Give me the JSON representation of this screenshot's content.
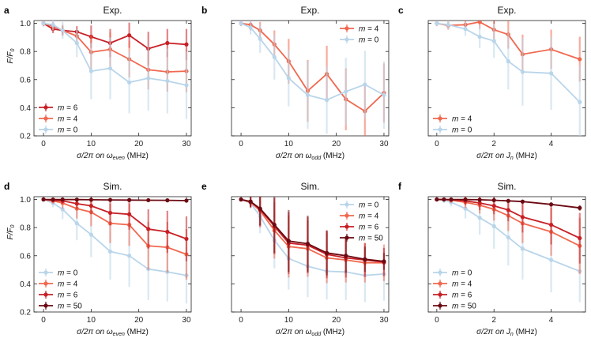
{
  "figure": {
    "ylabel": "F/F0",
    "ylabel_main": "F/F",
    "ylabel_sub": "0",
    "legend_prefix": "m",
    "colors": {
      "m0": "#b9d5ea",
      "m4": "#f0684f",
      "m6": "#c72026",
      "m50": "#6b0a12"
    }
  },
  "chart_data": [
    {
      "panel": "a",
      "title": "Exp.",
      "type": "line",
      "xlabel_pre": "σ/2π on ω",
      "xlabel_sub": "even",
      "xlabel_post": " (MHz)",
      "xlim": [
        -2,
        31
      ],
      "ylim": [
        0.2,
        1.02
      ],
      "xticks": [
        0,
        10,
        20,
        30
      ],
      "yticks": [
        0.2,
        0.4,
        0.6,
        0.8,
        1.0
      ],
      "ytick_labels": [
        "0.2",
        "0.4",
        "0.6",
        "0.8",
        "1.0"
      ],
      "legend": "bottom-left",
      "series": [
        {
          "name": "m = 6",
          "m": "6",
          "color": "#c72026",
          "x": [
            0,
            2,
            4,
            7,
            10,
            14,
            18,
            22,
            26,
            30
          ],
          "y": [
            1.0,
            0.96,
            0.95,
            0.94,
            0.905,
            0.86,
            0.915,
            0.82,
            0.86,
            0.85
          ],
          "err": [
            0.02,
            0.03,
            0.03,
            0.04,
            0.08,
            0.1,
            0.09,
            0.12,
            0.1,
            0.11
          ]
        },
        {
          "name": "m = 4",
          "m": "4",
          "color": "#f0684f",
          "x": [
            0,
            2,
            4,
            7,
            10,
            14,
            18,
            22,
            26,
            30
          ],
          "y": [
            1.0,
            0.98,
            0.95,
            0.91,
            0.795,
            0.815,
            0.745,
            0.67,
            0.655,
            0.66
          ],
          "err": [
            0.02,
            0.03,
            0.04,
            0.05,
            0.12,
            0.12,
            0.13,
            0.14,
            0.14,
            0.15
          ]
        },
        {
          "name": "m = 0",
          "m": "0",
          "color": "#b9d5ea",
          "x": [
            0,
            2,
            4,
            7,
            10,
            14,
            18,
            22,
            26,
            30
          ],
          "y": [
            1.0,
            0.99,
            0.95,
            0.86,
            0.66,
            0.68,
            0.58,
            0.61,
            0.59,
            0.56
          ],
          "err": [
            0.02,
            0.04,
            0.06,
            0.1,
            0.2,
            0.22,
            0.22,
            0.23,
            0.23,
            0.24
          ]
        }
      ]
    },
    {
      "panel": "b",
      "title": "Exp.",
      "type": "line",
      "xlabel_pre": "σ/2π on ω",
      "xlabel_sub": "odd",
      "xlabel_post": " (MHz)",
      "xlim": [
        -2,
        31
      ],
      "ylim": [
        0.2,
        1.02
      ],
      "xticks": [
        0,
        10,
        20,
        30
      ],
      "yticks": [
        0.2,
        0.4,
        0.6,
        0.8,
        1.0
      ],
      "ytick_labels": [
        "",
        "",
        "",
        "",
        ""
      ],
      "legend": "top-right",
      "series": [
        {
          "name": "m = 4",
          "m": "4",
          "color": "#f0684f",
          "x": [
            0,
            2,
            4,
            7,
            10,
            14,
            18,
            22,
            26,
            30
          ],
          "y": [
            1.0,
            0.99,
            0.95,
            0.85,
            0.73,
            0.52,
            0.64,
            0.46,
            0.375,
            0.505
          ],
          "err": [
            0.02,
            0.04,
            0.06,
            0.1,
            0.16,
            0.22,
            0.2,
            0.22,
            0.2,
            0.21
          ]
        },
        {
          "name": "m = 0",
          "m": "0",
          "color": "#b9d5ea",
          "x": [
            0,
            2,
            4,
            7,
            10,
            14,
            18,
            22,
            26,
            30
          ],
          "y": [
            1.0,
            0.97,
            0.89,
            0.76,
            0.61,
            0.49,
            0.455,
            0.515,
            0.565,
            0.49
          ],
          "err": [
            0.02,
            0.05,
            0.1,
            0.16,
            0.2,
            0.24,
            0.24,
            0.24,
            0.24,
            0.24
          ]
        }
      ]
    },
    {
      "panel": "c",
      "title": "Exp.",
      "type": "line",
      "xlabel_pre": "σ/2π on J",
      "xlabel_sub": "n",
      "xlabel_post": " (MHz)",
      "xlim": [
        -0.3,
        5.2
      ],
      "ylim": [
        0.2,
        1.02
      ],
      "xticks": [
        0,
        2,
        4
      ],
      "yticks": [
        0.2,
        0.4,
        0.6,
        0.8,
        1.0
      ],
      "ytick_labels": [
        "",
        "",
        "",
        "",
        ""
      ],
      "legend": "bottom-left",
      "series": [
        {
          "name": "m = 4",
          "m": "4",
          "color": "#f0684f",
          "x": [
            0,
            0.4,
            1.0,
            1.5,
            2.0,
            2.5,
            3.0,
            4.0,
            5.0
          ],
          "y": [
            1.0,
            0.985,
            0.99,
            1.01,
            0.955,
            0.92,
            0.78,
            0.815,
            0.745
          ],
          "err": [
            0.02,
            0.03,
            0.04,
            0.05,
            0.08,
            0.1,
            0.14,
            0.14,
            0.16
          ]
        },
        {
          "name": "m = 0",
          "m": "0",
          "color": "#b9d5ea",
          "x": [
            0,
            0.4,
            1.0,
            1.5,
            2.0,
            2.5,
            3.0,
            4.0,
            5.0
          ],
          "y": [
            1.0,
            0.99,
            0.96,
            0.905,
            0.875,
            0.73,
            0.655,
            0.645,
            0.44
          ],
          "err": [
            0.02,
            0.03,
            0.05,
            0.08,
            0.12,
            0.2,
            0.24,
            0.26,
            0.26
          ]
        }
      ]
    },
    {
      "panel": "d",
      "title": "Sim.",
      "type": "line",
      "xlabel_pre": "σ/2π on ω",
      "xlabel_sub": "even",
      "xlabel_post": " (MHz)",
      "xlim": [
        -2,
        31
      ],
      "ylim": [
        0.2,
        1.02
      ],
      "xticks": [
        0,
        10,
        20,
        30
      ],
      "yticks": [
        0.2,
        0.4,
        0.6,
        0.8,
        1.0
      ],
      "ytick_labels": [
        "0.2",
        "0.4",
        "0.6",
        "0.8",
        "1.0"
      ],
      "legend": "bottom-left",
      "series": [
        {
          "name": "m = 0",
          "m": "0",
          "color": "#b9d5ea",
          "x": [
            0,
            2,
            4,
            7,
            10,
            14,
            18,
            22,
            26,
            30
          ],
          "y": [
            1.0,
            0.975,
            0.93,
            0.83,
            0.75,
            0.63,
            0.6,
            0.505,
            0.485,
            0.46
          ],
          "err": [
            0.01,
            0.03,
            0.07,
            0.12,
            0.16,
            0.2,
            0.22,
            0.22,
            0.21,
            0.2
          ]
        },
        {
          "name": "m = 4",
          "m": "4",
          "color": "#f0684f",
          "x": [
            0,
            2,
            4,
            7,
            10,
            14,
            18,
            22,
            26,
            30
          ],
          "y": [
            1.0,
            0.99,
            0.975,
            0.935,
            0.91,
            0.83,
            0.82,
            0.67,
            0.66,
            0.61
          ],
          "err": [
            0.01,
            0.02,
            0.04,
            0.07,
            0.1,
            0.14,
            0.15,
            0.17,
            0.18,
            0.18
          ]
        },
        {
          "name": "m = 6",
          "m": "6",
          "color": "#c72026",
          "x": [
            0,
            2,
            4,
            7,
            10,
            14,
            18,
            22,
            26,
            30
          ],
          "y": [
            1.0,
            0.995,
            0.99,
            0.97,
            0.955,
            0.905,
            0.895,
            0.79,
            0.77,
            0.72
          ],
          "err": [
            0.01,
            0.01,
            0.02,
            0.04,
            0.06,
            0.09,
            0.11,
            0.14,
            0.15,
            0.16
          ]
        },
        {
          "name": "m = 50",
          "m": "50",
          "color": "#6b0a12",
          "x": [
            0,
            2,
            4,
            7,
            10,
            14,
            18,
            22,
            26,
            30
          ],
          "y": [
            1.0,
            1.0,
            1.0,
            0.999,
            0.998,
            0.997,
            0.996,
            0.995,
            0.994,
            0.992
          ],
          "err": [
            0.002,
            0.002,
            0.002,
            0.003,
            0.003,
            0.004,
            0.004,
            0.005,
            0.005,
            0.006
          ]
        }
      ]
    },
    {
      "panel": "e",
      "title": "Sim.",
      "type": "line",
      "xlabel_pre": "σ/2π on ω",
      "xlabel_sub": "odd",
      "xlabel_post": " (MHz)",
      "xlim": [
        -2,
        31
      ],
      "ylim": [
        0.2,
        1.02
      ],
      "xticks": [
        0,
        10,
        20,
        30
      ],
      "yticks": [
        0.2,
        0.4,
        0.6,
        0.8,
        1.0
      ],
      "ytick_labels": [
        "",
        "",
        "",
        "",
        ""
      ],
      "legend": "top-right",
      "series": [
        {
          "name": "m = 0",
          "m": "0",
          "color": "#b9d5ea",
          "x": [
            0,
            2,
            4,
            7,
            10,
            14,
            18,
            22,
            26,
            30
          ],
          "y": [
            1.0,
            0.975,
            0.88,
            0.71,
            0.58,
            0.525,
            0.49,
            0.485,
            0.46,
            0.47
          ],
          "err": [
            0.01,
            0.04,
            0.12,
            0.2,
            0.22,
            0.22,
            0.2,
            0.2,
            0.19,
            0.19
          ]
        },
        {
          "name": "m = 4",
          "m": "4",
          "color": "#f0684f",
          "x": [
            0,
            2,
            4,
            7,
            10,
            14,
            18,
            22,
            26,
            30
          ],
          "y": [
            1.0,
            0.98,
            0.92,
            0.78,
            0.665,
            0.65,
            0.585,
            0.57,
            0.55,
            0.55
          ],
          "err": [
            0.01,
            0.04,
            0.12,
            0.2,
            0.22,
            0.2,
            0.18,
            0.16,
            0.14,
            0.13
          ]
        },
        {
          "name": "m = 6",
          "m": "6",
          "color": "#c72026",
          "x": [
            0,
            2,
            4,
            7,
            10,
            14,
            18,
            22,
            26,
            30
          ],
          "y": [
            1.0,
            0.985,
            0.93,
            0.81,
            0.69,
            0.675,
            0.61,
            0.585,
            0.57,
            0.555
          ],
          "err": [
            0.01,
            0.04,
            0.12,
            0.2,
            0.22,
            0.2,
            0.17,
            0.14,
            0.12,
            0.1
          ]
        },
        {
          "name": "m = 50",
          "m": "50",
          "color": "#6b0a12",
          "x": [
            0,
            2,
            4,
            7,
            10,
            14,
            18,
            22,
            26,
            30
          ],
          "y": [
            1.0,
            0.985,
            0.935,
            0.82,
            0.705,
            0.685,
            0.62,
            0.6,
            0.575,
            0.56
          ],
          "err": [
            0.01,
            0.04,
            0.12,
            0.2,
            0.22,
            0.2,
            0.16,
            0.12,
            0.09,
            0.06
          ]
        }
      ]
    },
    {
      "panel": "f",
      "title": "Sim.",
      "type": "line",
      "xlabel_pre": "σ/2π on J",
      "xlabel_sub": "n",
      "xlabel_post": " (MHz)",
      "xlim": [
        -0.3,
        5.2
      ],
      "ylim": [
        0.2,
        1.02
      ],
      "xticks": [
        0,
        2,
        4
      ],
      "yticks": [
        0.2,
        0.4,
        0.6,
        0.8,
        1.0
      ],
      "ytick_labels": [
        "",
        "",
        "",
        "",
        ""
      ],
      "legend": "bottom-left",
      "series": [
        {
          "name": "m = 0",
          "m": "0",
          "color": "#b9d5ea",
          "x": [
            0,
            0.25,
            0.5,
            1.0,
            1.5,
            2.0,
            2.5,
            3.0,
            4.0,
            5.0
          ],
          "y": [
            1.0,
            0.995,
            0.98,
            0.935,
            0.87,
            0.81,
            0.73,
            0.65,
            0.57,
            0.49
          ],
          "err": [
            0.01,
            0.02,
            0.03,
            0.07,
            0.12,
            0.16,
            0.2,
            0.22,
            0.23,
            0.22
          ]
        },
        {
          "name": "m = 4",
          "m": "4",
          "color": "#f0684f",
          "x": [
            0,
            0.25,
            0.5,
            1.0,
            1.5,
            2.0,
            2.5,
            3.0,
            4.0,
            5.0
          ],
          "y": [
            1.0,
            1.0,
            0.995,
            0.98,
            0.96,
            0.93,
            0.885,
            0.83,
            0.77,
            0.67
          ],
          "err": [
            0.005,
            0.01,
            0.02,
            0.04,
            0.06,
            0.08,
            0.11,
            0.14,
            0.17,
            0.2
          ]
        },
        {
          "name": "m = 6",
          "m": "6",
          "color": "#c72026",
          "x": [
            0,
            0.25,
            0.5,
            1.0,
            1.5,
            2.0,
            2.5,
            3.0,
            4.0,
            5.0
          ],
          "y": [
            1.0,
            1.0,
            0.998,
            0.99,
            0.975,
            0.955,
            0.925,
            0.875,
            0.82,
            0.725
          ],
          "err": [
            0.005,
            0.01,
            0.015,
            0.03,
            0.05,
            0.06,
            0.08,
            0.11,
            0.14,
            0.18
          ]
        },
        {
          "name": "m = 50",
          "m": "50",
          "color": "#6b0a12",
          "x": [
            0,
            0.25,
            0.5,
            1.0,
            1.5,
            2.0,
            2.5,
            3.0,
            4.0,
            5.0
          ],
          "y": [
            1.0,
            1.0,
            1.0,
            1.0,
            0.998,
            0.995,
            0.99,
            0.985,
            0.965,
            0.94
          ],
          "err": [
            0.002,
            0.003,
            0.004,
            0.005,
            0.006,
            0.008,
            0.01,
            0.012,
            0.015,
            0.02
          ]
        }
      ]
    }
  ]
}
